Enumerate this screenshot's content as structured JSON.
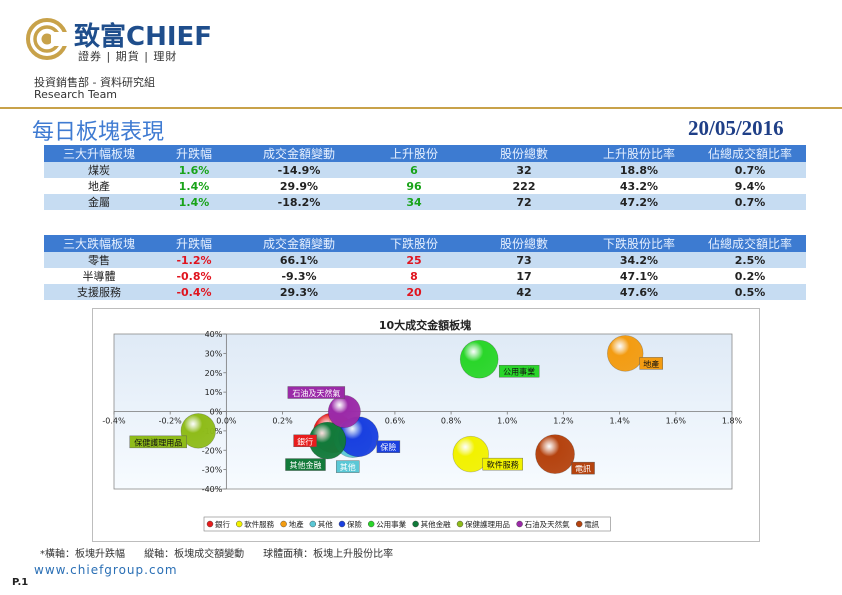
{
  "header": {
    "brand_name": "致富CHIEF",
    "brand_sub": "證券 | 期貨 | 理財",
    "department": "投資銷售部 - 資料研究組",
    "team": "Research Team",
    "page_title": "每日板塊表現",
    "date": "20/05/2016"
  },
  "top_table": {
    "headers": [
      "三大升幅板塊",
      "升跌幅",
      "成交金額變動",
      "上升股份",
      "股份總數",
      "上升股份比率",
      "佔總成交額比率"
    ],
    "rows": [
      {
        "sector": "煤炭",
        "change": "1.6%",
        "turnover_change": "-14.9%",
        "stocks": "6",
        "total": "32",
        "ratio": "18.8%",
        "share": "0.7%"
      },
      {
        "sector": "地產",
        "change": "1.4%",
        "turnover_change": "29.9%",
        "stocks": "96",
        "total": "222",
        "ratio": "43.2%",
        "share": "9.4%"
      },
      {
        "sector": "金屬",
        "change": "1.4%",
        "turnover_change": "-18.2%",
        "stocks": "34",
        "total": "72",
        "ratio": "47.2%",
        "share": "0.7%"
      }
    ]
  },
  "bottom_table": {
    "headers": [
      "三大跌幅板塊",
      "升跌幅",
      "成交金額變動",
      "下跌股份",
      "股份總數",
      "下跌股份比率",
      "佔總成交額比率"
    ],
    "rows": [
      {
        "sector": "零售",
        "change": "-1.2%",
        "turnover_change": "66.1%",
        "stocks": "25",
        "total": "73",
        "ratio": "34.2%",
        "share": "2.5%"
      },
      {
        "sector": "半導體",
        "change": "-0.8%",
        "turnover_change": "-9.3%",
        "stocks": "8",
        "total": "17",
        "ratio": "47.1%",
        "share": "0.2%"
      },
      {
        "sector": "支援服務",
        "change": "-0.4%",
        "turnover_change": "29.3%",
        "stocks": "20",
        "total": "42",
        "ratio": "47.6%",
        "share": "0.5%"
      }
    ]
  },
  "chart_data": {
    "type": "bubble",
    "title": "10大成交金額板塊",
    "xlabel": "板塊升跌幅",
    "ylabel": "板塊成交額變動",
    "xlim": [
      -0.4,
      1.8
    ],
    "ylim": [
      -40,
      40
    ],
    "x_ticks": [
      "-0.4%",
      "-0.2%",
      "0.0%",
      "0.2%",
      "0.4%",
      "0.6%",
      "0.8%",
      "1.0%",
      "1.2%",
      "1.4%",
      "1.6%",
      "1.8%"
    ],
    "y_ticks": [
      "40%",
      "30%",
      "20%",
      "10%",
      "0%",
      "-10%",
      "-20%",
      "-30%",
      "-40%"
    ],
    "series": [
      {
        "name": "銀行",
        "x": 0.38,
        "y": -11,
        "size": 1.0,
        "color": "#e81c1c"
      },
      {
        "name": "軟件服務",
        "x": 0.87,
        "y": -22,
        "size": 0.8,
        "color": "#f2f200"
      },
      {
        "name": "地產",
        "x": 1.42,
        "y": 30,
        "size": 0.8,
        "color": "#f39c12"
      },
      {
        "name": "其他",
        "x": 0.45,
        "y": -14,
        "size": 0.9,
        "color": "#5bc8d6"
      },
      {
        "name": "保險",
        "x": 0.47,
        "y": -13,
        "size": 1.0,
        "color": "#1a40e0"
      },
      {
        "name": "公用事業",
        "x": 0.9,
        "y": 27,
        "size": 0.9,
        "color": "#2ad62a"
      },
      {
        "name": "其他金融",
        "x": 0.36,
        "y": -15,
        "size": 0.85,
        "color": "#127a3a"
      },
      {
        "name": "保健護理用品",
        "x": -0.1,
        "y": -10,
        "size": 0.75,
        "color": "#8fbc1a"
      },
      {
        "name": "石油及天然氣",
        "x": 0.42,
        "y": 0,
        "size": 0.65,
        "color": "#9b2aa8"
      },
      {
        "name": "電訊",
        "x": 1.17,
        "y": -22,
        "size": 0.95,
        "color": "#b5430f"
      }
    ]
  },
  "footnote": {
    "x_desc": "*橫軸：板塊升跌幅",
    "y_desc": "縱軸：板塊成交額變動",
    "size_desc": "球體面積：板塊上升股份比率"
  },
  "footer": {
    "website": "www.chiefgroup.com",
    "page": "P.1"
  }
}
